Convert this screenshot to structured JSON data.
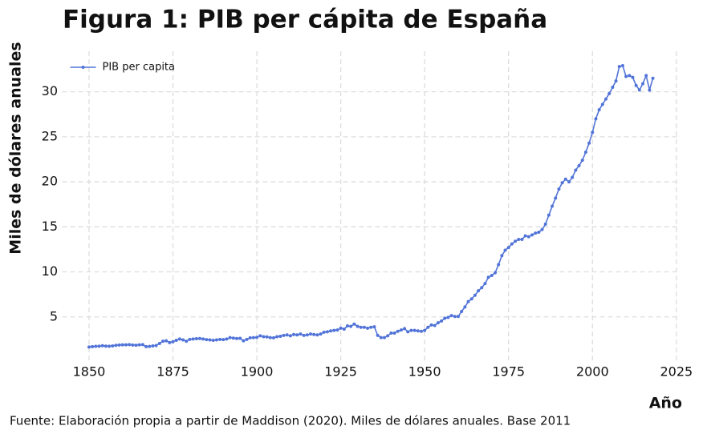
{
  "chart_data": {
    "type": "line",
    "title": "Figura 1: PIB per cápita de España",
    "xlabel": "Año",
    "ylabel": "Miles de dólares anuales",
    "caption": "Fuente: Elaboración propia a partir de Maddison (2020). Miles de dólares anuales. Base 2011",
    "x": [
      1850,
      1851,
      1852,
      1853,
      1854,
      1855,
      1856,
      1857,
      1858,
      1859,
      1860,
      1861,
      1862,
      1863,
      1864,
      1865,
      1866,
      1867,
      1868,
      1869,
      1870,
      1871,
      1872,
      1873,
      1874,
      1875,
      1876,
      1877,
      1878,
      1879,
      1880,
      1881,
      1882,
      1883,
      1884,
      1885,
      1886,
      1887,
      1888,
      1889,
      1890,
      1891,
      1892,
      1893,
      1894,
      1895,
      1896,
      1897,
      1898,
      1899,
      1900,
      1901,
      1902,
      1903,
      1904,
      1905,
      1906,
      1907,
      1908,
      1909,
      1910,
      1911,
      1912,
      1913,
      1914,
      1915,
      1916,
      1917,
      1918,
      1919,
      1920,
      1921,
      1922,
      1923,
      1924,
      1925,
      1926,
      1927,
      1928,
      1929,
      1930,
      1931,
      1932,
      1933,
      1934,
      1935,
      1936,
      1937,
      1938,
      1939,
      1940,
      1941,
      1942,
      1943,
      1944,
      1945,
      1946,
      1947,
      1948,
      1949,
      1950,
      1951,
      1952,
      1953,
      1954,
      1955,
      1956,
      1957,
      1958,
      1959,
      1960,
      1961,
      1962,
      1963,
      1964,
      1965,
      1966,
      1967,
      1968,
      1969,
      1970,
      1971,
      1972,
      1973,
      1974,
      1975,
      1976,
      1977,
      1978,
      1979,
      1980,
      1981,
      1982,
      1983,
      1984,
      1985,
      1986,
      1987,
      1988,
      1989,
      1990,
      1991,
      1992,
      1993,
      1994,
      1995,
      1996,
      1997,
      1998,
      1999,
      2000,
      2001,
      2002,
      2003,
      2004,
      2005,
      2006,
      2007,
      2008,
      2009,
      2010,
      2011,
      2012,
      2013,
      2014,
      2015,
      2016,
      2017,
      2018
    ],
    "series": [
      {
        "name": "PIB per capita",
        "color": "#5274d8",
        "values": [
          1.66,
          1.7,
          1.73,
          1.75,
          1.8,
          1.76,
          1.74,
          1.78,
          1.84,
          1.88,
          1.9,
          1.9,
          1.92,
          1.88,
          1.86,
          1.9,
          1.92,
          1.7,
          1.72,
          1.78,
          1.82,
          2.05,
          2.3,
          2.35,
          2.15,
          2.25,
          2.4,
          2.55,
          2.45,
          2.3,
          2.5,
          2.55,
          2.58,
          2.6,
          2.55,
          2.48,
          2.45,
          2.4,
          2.45,
          2.5,
          2.48,
          2.55,
          2.7,
          2.65,
          2.6,
          2.62,
          2.35,
          2.5,
          2.68,
          2.7,
          2.72,
          2.9,
          2.8,
          2.78,
          2.7,
          2.68,
          2.8,
          2.85,
          2.95,
          3.0,
          2.9,
          3.05,
          3.0,
          3.1,
          2.95,
          3.0,
          3.1,
          3.05,
          3.0,
          3.1,
          3.3,
          3.35,
          3.45,
          3.5,
          3.55,
          3.75,
          3.65,
          4.0,
          3.95,
          4.2,
          3.95,
          3.85,
          3.85,
          3.75,
          3.85,
          3.9,
          2.95,
          2.7,
          2.7,
          2.9,
          3.2,
          3.2,
          3.4,
          3.55,
          3.7,
          3.35,
          3.5,
          3.5,
          3.45,
          3.4,
          3.5,
          3.85,
          4.1,
          4.05,
          4.35,
          4.55,
          4.85,
          4.95,
          5.15,
          5.05,
          5.05,
          5.6,
          6.1,
          6.7,
          7.0,
          7.4,
          7.9,
          8.25,
          8.7,
          9.4,
          9.6,
          9.9,
          10.8,
          11.8,
          12.4,
          12.7,
          13.1,
          13.4,
          13.6,
          13.6,
          14.0,
          13.9,
          14.1,
          14.3,
          14.4,
          14.7,
          15.3,
          16.3,
          17.3,
          18.2,
          19.2,
          19.9,
          20.3,
          20.0,
          20.5,
          21.3,
          21.8,
          22.4,
          23.3,
          24.3,
          25.5,
          27.0,
          28.0,
          28.6,
          29.2,
          29.8,
          30.5,
          31.2,
          32.8,
          32.9,
          31.7,
          31.8,
          31.6,
          30.7,
          30.2,
          30.9,
          31.8,
          30.2,
          31.5
        ]
      }
    ],
    "xlim": [
      1842,
      2026
    ],
    "xticks": [
      1850,
      1875,
      1900,
      1925,
      1950,
      1975,
      2000,
      2025
    ],
    "ylim": [
      0,
      34.5
    ],
    "yticks": [
      5,
      10,
      15,
      20,
      25,
      30
    ],
    "grid": true,
    "legend": "upper-left"
  }
}
